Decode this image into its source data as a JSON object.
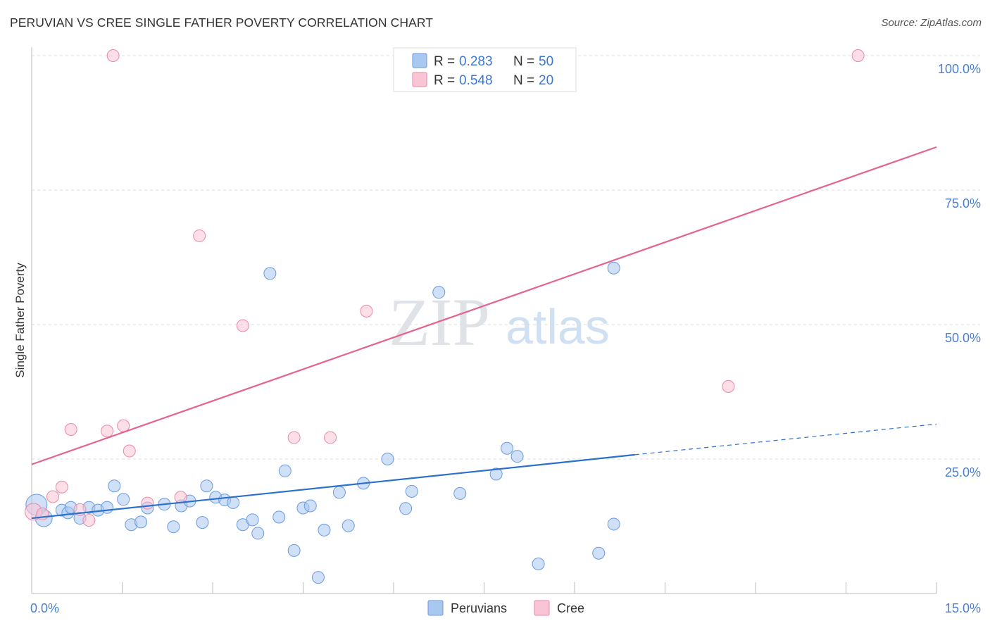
{
  "header": {
    "title": "PERUVIAN VS CREE SINGLE FATHER POVERTY CORRELATION CHART",
    "source": "Source: ZipAtlas.com"
  },
  "watermark": {
    "zip": "ZIP",
    "atlas": "atlas"
  },
  "legend_box": {
    "rows": [
      {
        "r_label": "R =",
        "r_value": "0.283",
        "n_label": "N =",
        "n_value": "50",
        "color": "#a9c8f0",
        "stroke": "#6f9fe0"
      },
      {
        "r_label": "R =",
        "r_value": "0.548",
        "n_label": "N =",
        "n_value": "20",
        "color": "#f9c4d4",
        "stroke": "#ec8fae"
      }
    ]
  },
  "bottom_legend": {
    "peruvians": "Peruvians",
    "cree": "Cree"
  },
  "colors": {
    "peruvian_fill": "#a9c8f0",
    "peruvian_stroke": "#6a9ade",
    "peruvian_line": "#2b6fcf",
    "cree_fill": "#f9c4d4",
    "cree_stroke": "#e889a8",
    "cree_line": "#e4648e",
    "grid": "#dddddd",
    "tick_label": "#4a7fd0"
  },
  "chart_data": {
    "type": "scatter",
    "title": "PERUVIAN VS CREE SINGLE FATHER POVERTY CORRELATION CHART",
    "xlabel": "",
    "ylabel": "Single Father Poverty",
    "xlim": [
      0,
      15
    ],
    "ylim": [
      0,
      100
    ],
    "x_tick_labels": [
      "0.0%",
      "15.0%"
    ],
    "y_ticks": [
      25,
      50,
      75,
      100
    ],
    "y_tick_labels": [
      "25.0%",
      "50.0%",
      "75.0%",
      "100.0%"
    ],
    "grid": true,
    "legend_position": "top-center",
    "series": [
      {
        "name": "Peruvians",
        "r": 0.283,
        "n": 50,
        "points": [
          {
            "x": 0.08,
            "y": 16.5,
            "big": 2
          },
          {
            "x": 0.2,
            "y": 14.0,
            "big": 1
          },
          {
            "x": 0.5,
            "y": 15.5
          },
          {
            "x": 0.6,
            "y": 15.0
          },
          {
            "x": 0.65,
            "y": 16.0
          },
          {
            "x": 0.8,
            "y": 14.0
          },
          {
            "x": 0.95,
            "y": 16.0
          },
          {
            "x": 1.1,
            "y": 15.5
          },
          {
            "x": 1.25,
            "y": 16.0
          },
          {
            "x": 1.37,
            "y": 20.0
          },
          {
            "x": 1.52,
            "y": 17.5
          },
          {
            "x": 1.65,
            "y": 12.8
          },
          {
            "x": 1.81,
            "y": 13.3
          },
          {
            "x": 1.92,
            "y": 15.9
          },
          {
            "x": 2.2,
            "y": 16.6
          },
          {
            "x": 2.35,
            "y": 12.4
          },
          {
            "x": 2.48,
            "y": 16.3
          },
          {
            "x": 2.62,
            "y": 17.2
          },
          {
            "x": 2.83,
            "y": 13.2
          },
          {
            "x": 2.9,
            "y": 20.0
          },
          {
            "x": 3.05,
            "y": 17.9
          },
          {
            "x": 3.2,
            "y": 17.4
          },
          {
            "x": 3.34,
            "y": 16.9
          },
          {
            "x": 3.5,
            "y": 12.8
          },
          {
            "x": 3.66,
            "y": 13.7
          },
          {
            "x": 3.75,
            "y": 11.2
          },
          {
            "x": 3.95,
            "y": 59.5
          },
          {
            "x": 4.1,
            "y": 14.2
          },
          {
            "x": 4.2,
            "y": 22.8
          },
          {
            "x": 4.35,
            "y": 8.0
          },
          {
            "x": 4.5,
            "y": 15.9
          },
          {
            "x": 4.62,
            "y": 16.3
          },
          {
            "x": 4.75,
            "y": 3.0
          },
          {
            "x": 4.85,
            "y": 11.8
          },
          {
            "x": 5.1,
            "y": 18.8
          },
          {
            "x": 5.25,
            "y": 12.6
          },
          {
            "x": 5.5,
            "y": 20.5
          },
          {
            "x": 5.9,
            "y": 25.0
          },
          {
            "x": 6.2,
            "y": 15.8
          },
          {
            "x": 6.3,
            "y": 19.0
          },
          {
            "x": 6.75,
            "y": 56.0
          },
          {
            "x": 7.1,
            "y": 18.6
          },
          {
            "x": 7.7,
            "y": 22.2
          },
          {
            "x": 7.88,
            "y": 27.0
          },
          {
            "x": 8.05,
            "y": 25.5
          },
          {
            "x": 8.4,
            "y": 5.5
          },
          {
            "x": 9.4,
            "y": 7.5
          },
          {
            "x": 9.65,
            "y": 60.5
          },
          {
            "x": 9.65,
            "y": 12.9
          }
        ],
        "trendline": {
          "x0": 0,
          "y0": 14.0,
          "x1": 10.0,
          "y1": 25.8,
          "dashed_x1": 15.0,
          "dashed_y1": 31.5
        }
      },
      {
        "name": "Cree",
        "r": 0.548,
        "n": 20,
        "points": [
          {
            "x": 0.03,
            "y": 15.2,
            "big": 1
          },
          {
            "x": 0.18,
            "y": 14.8
          },
          {
            "x": 0.35,
            "y": 18.0
          },
          {
            "x": 0.5,
            "y": 19.8
          },
          {
            "x": 0.65,
            "y": 30.5
          },
          {
            "x": 0.8,
            "y": 15.6
          },
          {
            "x": 0.95,
            "y": 13.6
          },
          {
            "x": 1.25,
            "y": 30.2
          },
          {
            "x": 1.35,
            "y": 100.0
          },
          {
            "x": 1.52,
            "y": 31.2
          },
          {
            "x": 1.62,
            "y": 26.5
          },
          {
            "x": 1.92,
            "y": 16.8
          },
          {
            "x": 2.47,
            "y": 17.9
          },
          {
            "x": 2.78,
            "y": 66.5
          },
          {
            "x": 3.5,
            "y": 49.8
          },
          {
            "x": 4.35,
            "y": 29.0
          },
          {
            "x": 4.95,
            "y": 29.0
          },
          {
            "x": 5.55,
            "y": 52.5
          },
          {
            "x": 11.55,
            "y": 38.5
          },
          {
            "x": 13.7,
            "y": 100.0
          }
        ],
        "trendline": {
          "x0": 0,
          "y0": 24.0,
          "x1": 15.0,
          "y1": 83.0
        }
      }
    ]
  }
}
